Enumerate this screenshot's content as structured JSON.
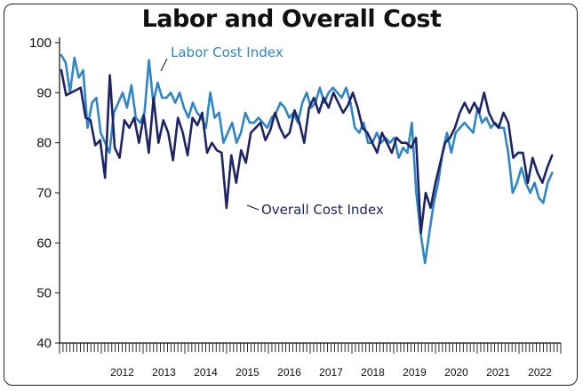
{
  "chart_data": {
    "type": "line",
    "title": "Labor and Overall Cost",
    "xlabel": "",
    "ylabel": "",
    "ylim": [
      40,
      100
    ],
    "yticks": [
      40,
      50,
      60,
      70,
      80,
      90,
      100
    ],
    "xtick_labels": [
      "2012",
      "2013",
      "2014",
      "2015",
      "2016",
      "2017",
      "2018",
      "2019",
      "2020",
      "2021",
      "2022"
    ],
    "x_start": "2011-01",
    "grid": false,
    "colors": {
      "labor": "#2e86c8",
      "overall": "#1f2466"
    },
    "series": [
      {
        "name": "Labor Cost Index",
        "values": [
          97.5,
          96,
          90,
          97,
          93,
          94.5,
          83,
          88,
          89,
          82,
          80,
          78,
          86,
          88,
          90,
          87,
          91.5,
          85,
          84,
          86,
          96.5,
          88,
          92,
          89,
          89,
          90,
          88,
          90,
          87,
          85,
          88,
          86,
          85,
          83,
          90,
          85,
          86,
          80,
          82,
          84,
          80,
          82,
          86,
          84,
          84,
          85,
          84,
          83,
          85,
          86,
          88,
          87,
          85,
          86,
          84,
          88,
          90,
          87,
          88,
          91,
          88,
          90,
          91,
          90,
          89,
          91,
          88,
          83,
          82,
          84,
          80,
          80,
          82,
          80,
          81,
          80,
          81,
          77,
          79,
          78,
          84,
          70,
          62,
          56,
          62,
          68,
          72,
          78,
          82,
          78,
          82,
          83,
          84,
          83,
          82,
          87,
          84,
          85,
          83,
          84,
          83,
          83,
          78,
          70,
          72,
          75,
          72,
          70,
          72,
          69,
          68,
          72,
          74
        ]
      },
      {
        "name": "Overall Cost Index",
        "values": [
          94.5,
          89.5,
          90,
          90.5,
          91,
          85,
          84.5,
          79.5,
          80.5,
          73,
          93.5,
          79,
          77,
          84.5,
          83,
          85,
          80,
          85.5,
          78,
          89,
          80,
          84.5,
          82,
          76.5,
          85,
          82,
          77.5,
          85,
          83.5,
          86,
          78,
          80,
          78.5,
          78,
          67,
          77.5,
          72,
          78.5,
          76,
          82,
          83,
          84,
          80.5,
          82.5,
          86,
          83,
          81,
          82,
          86.5,
          84,
          80,
          87,
          89,
          86,
          89,
          87,
          90,
          88,
          86,
          87.5,
          90,
          87,
          83,
          82,
          80,
          78,
          82,
          80,
          78,
          81,
          80,
          80,
          79,
          81,
          62,
          70,
          67,
          72,
          76,
          80,
          81,
          83,
          86,
          88,
          86,
          88,
          86,
          90,
          86,
          84,
          83,
          86,
          84,
          77,
          78,
          78,
          72,
          77,
          74,
          72,
          75,
          77.5
        ]
      }
    ]
  },
  "annotations": {
    "labor_label": "Labor Cost Index",
    "overall_label": "Overall Cost Index"
  }
}
